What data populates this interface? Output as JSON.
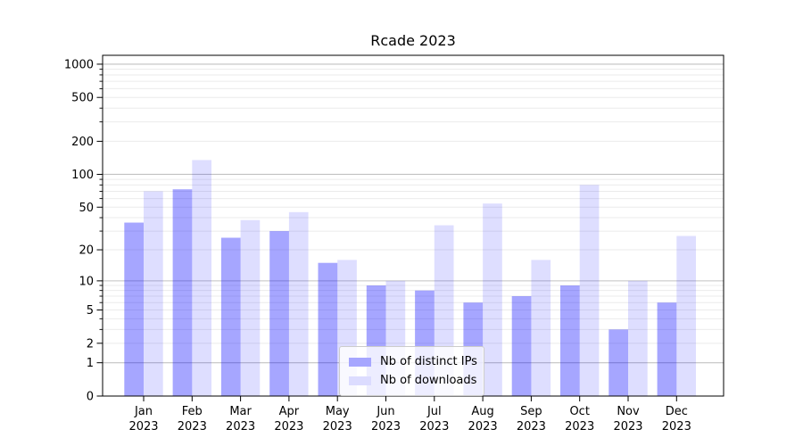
{
  "chart_data": {
    "type": "bar",
    "title": "Rcade 2023",
    "xlabel": "",
    "ylabel": "",
    "categories": [
      "Jan 2023",
      "Feb 2023",
      "Mar 2023",
      "Apr 2023",
      "May 2023",
      "Jun 2023",
      "Jul 2023",
      "Aug 2023",
      "Sep 2023",
      "Oct 2023",
      "Nov 2023",
      "Dec 2023"
    ],
    "x_tick_month_line": [
      "Jan",
      "Feb",
      "Mar",
      "Apr",
      "May",
      "Jun",
      "Jul",
      "Aug",
      "Sep",
      "Oct",
      "Nov",
      "Dec"
    ],
    "x_tick_year_line": "2023",
    "series": [
      {
        "name": "Nb of distinct IPs",
        "values": [
          36,
          73,
          26,
          30,
          15,
          9,
          8,
          6,
          7,
          9,
          3,
          6
        ],
        "color": "rgba(0,0,255,0.35)",
        "color_on_white": "#a6a6ff"
      },
      {
        "name": "Nb of downloads",
        "values": [
          70,
          135,
          38,
          45,
          16,
          10,
          34,
          54,
          16,
          80,
          10,
          27
        ],
        "color": "rgba(0,0,255,0.13)",
        "color_on_white": "#dcdcff"
      }
    ],
    "yscale": "log1p",
    "ylim": [
      0,
      1200
    ],
    "y_tick_labels": [
      "0",
      "1",
      "2",
      "5",
      "10",
      "20",
      "50",
      "100",
      "200",
      "500",
      "1000"
    ],
    "y_tick_values": [
      0,
      1,
      2,
      5,
      10,
      20,
      50,
      100,
      200,
      500,
      1000
    ],
    "y_major_grid_values": [
      1,
      10,
      100,
      1000
    ],
    "grid": true,
    "legend": {
      "position": "lower center",
      "labels": [
        "Nb of distinct IPs",
        "Nb of downloads"
      ]
    },
    "colors": {
      "major_grid": "#c2c2c2",
      "minor_grid": "#ebebeb",
      "spine": "#000000",
      "text": "#000000",
      "background": "#ffffff"
    }
  }
}
